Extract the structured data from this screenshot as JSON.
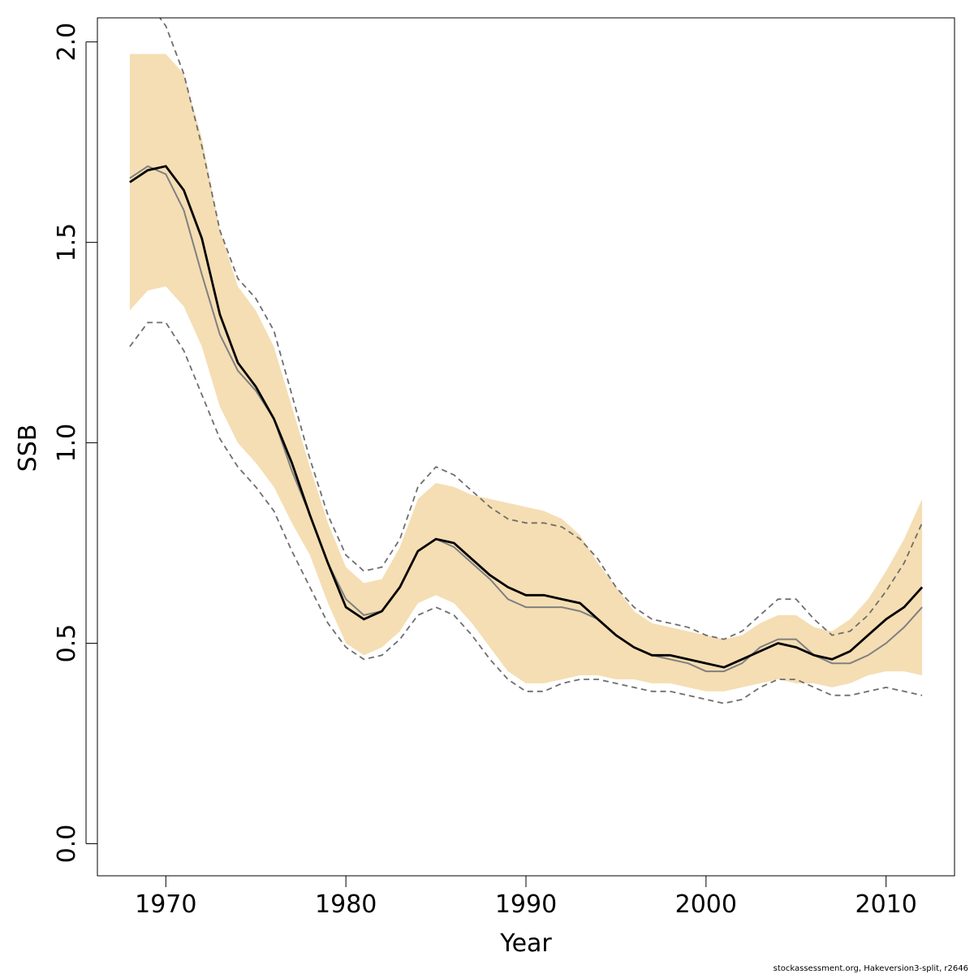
{
  "footer": "stockassessment.org, Hakeversion3-split, r2646",
  "colors": {
    "band": "#f5deb3",
    "estimate": "#000000",
    "comparison": "#808080",
    "dashed_bounds": "#6e6e6e",
    "axes": "#000000"
  },
  "chart_data": {
    "type": "line",
    "title": "",
    "xlabel": "Year",
    "ylabel": "SSB",
    "xlim": [
      1966.2,
      2013.8
    ],
    "ylim": [
      -0.08,
      2.06
    ],
    "x_ticks": [
      1970,
      1980,
      1990,
      2000,
      2010
    ],
    "y_ticks": [
      0.0,
      0.5,
      1.0,
      1.5,
      2.0
    ],
    "x_tick_labels": [
      "1970",
      "1980",
      "1990",
      "2000",
      "2010"
    ],
    "y_tick_labels": [
      "0.0",
      "0.5",
      "1.0",
      "1.5",
      "2.0"
    ],
    "grid": false,
    "legend": "none",
    "x": [
      1968,
      1969,
      1970,
      1971,
      1972,
      1973,
      1974,
      1975,
      1976,
      1977,
      1978,
      1979,
      1980,
      1981,
      1982,
      1983,
      1984,
      1985,
      1986,
      1987,
      1988,
      1989,
      1990,
      1991,
      1992,
      1993,
      1994,
      1995,
      1996,
      1997,
      1998,
      1999,
      2000,
      2001,
      2002,
      2003,
      2004,
      2005,
      2006,
      2007,
      2008,
      2009,
      2010,
      2011,
      2012
    ],
    "series": [
      {
        "role": "band",
        "lower": [
          1.33,
          1.38,
          1.39,
          1.34,
          1.24,
          1.09,
          1.0,
          0.95,
          0.89,
          0.8,
          0.72,
          0.6,
          0.5,
          0.47,
          0.49,
          0.53,
          0.6,
          0.62,
          0.6,
          0.55,
          0.49,
          0.43,
          0.4,
          0.4,
          0.41,
          0.42,
          0.42,
          0.41,
          0.41,
          0.4,
          0.4,
          0.39,
          0.38,
          0.38,
          0.39,
          0.4,
          0.41,
          0.4,
          0.4,
          0.39,
          0.4,
          0.42,
          0.43,
          0.43,
          0.42
        ],
        "upper": [
          1.97,
          1.97,
          1.97,
          1.92,
          1.76,
          1.53,
          1.39,
          1.33,
          1.24,
          1.09,
          0.94,
          0.8,
          0.69,
          0.65,
          0.66,
          0.74,
          0.86,
          0.9,
          0.89,
          0.87,
          0.86,
          0.85,
          0.84,
          0.83,
          0.81,
          0.77,
          0.7,
          0.64,
          0.58,
          0.55,
          0.54,
          0.53,
          0.52,
          0.51,
          0.52,
          0.55,
          0.57,
          0.57,
          0.54,
          0.53,
          0.56,
          0.61,
          0.68,
          0.76,
          0.86
        ]
      },
      {
        "role": "upper-dashed",
        "values": [
          2.13,
          2.1,
          2.04,
          1.92,
          1.74,
          1.53,
          1.41,
          1.36,
          1.28,
          1.12,
          0.96,
          0.82,
          0.72,
          0.68,
          0.69,
          0.76,
          0.89,
          0.94,
          0.92,
          0.88,
          0.84,
          0.81,
          0.8,
          0.8,
          0.79,
          0.76,
          0.71,
          0.64,
          0.59,
          0.56,
          0.55,
          0.54,
          0.52,
          0.51,
          0.53,
          0.57,
          0.61,
          0.61,
          0.56,
          0.52,
          0.53,
          0.57,
          0.63,
          0.7,
          0.8
        ]
      },
      {
        "role": "lower-dashed",
        "values": [
          1.24,
          1.3,
          1.3,
          1.23,
          1.12,
          1.01,
          0.94,
          0.89,
          0.83,
          0.73,
          0.64,
          0.55,
          0.49,
          0.46,
          0.47,
          0.51,
          0.57,
          0.59,
          0.57,
          0.52,
          0.46,
          0.41,
          0.38,
          0.38,
          0.4,
          0.41,
          0.41,
          0.4,
          0.39,
          0.38,
          0.38,
          0.37,
          0.36,
          0.35,
          0.36,
          0.39,
          0.41,
          0.41,
          0.39,
          0.37,
          0.37,
          0.38,
          0.39,
          0.38,
          0.37
        ]
      },
      {
        "role": "comparison",
        "values": [
          1.66,
          1.69,
          1.67,
          1.58,
          1.42,
          1.27,
          1.18,
          1.13,
          1.06,
          0.93,
          0.82,
          0.7,
          0.61,
          0.57,
          0.58,
          0.64,
          0.73,
          0.76,
          0.74,
          0.7,
          0.66,
          0.61,
          0.59,
          0.59,
          0.59,
          0.58,
          0.56,
          0.52,
          0.49,
          0.47,
          0.46,
          0.45,
          0.43,
          0.43,
          0.45,
          0.49,
          0.51,
          0.51,
          0.47,
          0.45,
          0.45,
          0.47,
          0.5,
          0.54,
          0.59
        ]
      },
      {
        "role": "estimate",
        "values": [
          1.65,
          1.68,
          1.69,
          1.63,
          1.51,
          1.32,
          1.2,
          1.14,
          1.06,
          0.95,
          0.82,
          0.7,
          0.59,
          0.56,
          0.58,
          0.64,
          0.73,
          0.76,
          0.75,
          0.71,
          0.67,
          0.64,
          0.62,
          0.62,
          0.61,
          0.6,
          0.56,
          0.52,
          0.49,
          0.47,
          0.47,
          0.46,
          0.45,
          0.44,
          0.46,
          0.48,
          0.5,
          0.49,
          0.47,
          0.46,
          0.48,
          0.52,
          0.56,
          0.59,
          0.64
        ]
      }
    ]
  }
}
